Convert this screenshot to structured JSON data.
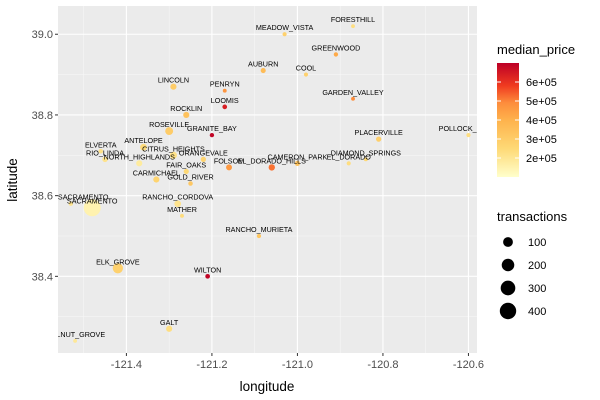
{
  "chart_data": {
    "type": "scatter",
    "xlabel": "longitude",
    "ylabel": "latitude",
    "xlim": [
      -121.56,
      -120.58
    ],
    "ylim": [
      38.21,
      39.07
    ],
    "x_ticks": [
      -121.4,
      -121.2,
      -121.0,
      -120.8,
      -120.6
    ],
    "x_tick_labels": [
      "-121.4",
      "-121.2",
      "-121.0",
      "-120.8",
      "-120.6"
    ],
    "y_ticks": [
      38.4,
      38.6,
      38.8,
      39.0
    ],
    "y_tick_labels": [
      "38.4",
      "38.6",
      "38.8",
      "39.0"
    ],
    "grid": true,
    "color_legend": {
      "title": "median_price",
      "min": 100000,
      "max": 700000,
      "breaks": [
        200000,
        300000,
        400000,
        500000,
        600000
      ],
      "break_labels": [
        "2e+05",
        "3e+05",
        "4e+05",
        "5e+05",
        "6e+05"
      ],
      "low_color": "#ffffcc",
      "high_color": "#bd0026"
    },
    "size_legend": {
      "title": "transactions",
      "breaks": [
        100,
        200,
        300,
        400
      ],
      "break_labels": [
        "100",
        "200",
        "300",
        "400"
      ]
    },
    "legend_position": "right",
    "points": [
      {
        "label": "FORESTHILL",
        "x": -120.87,
        "y": 39.02,
        "transactions": 1,
        "median_price": 230000
      },
      {
        "label": "MEADOW_VISTA",
        "x": -121.03,
        "y": 39.0,
        "transactions": 2,
        "median_price": 280000
      },
      {
        "label": "GREENWOOD",
        "x": -120.91,
        "y": 38.95,
        "transactions": 3,
        "median_price": 420000
      },
      {
        "label": "AUBURN",
        "x": -121.08,
        "y": 38.91,
        "transactions": 8,
        "median_price": 360000
      },
      {
        "label": "COOL",
        "x": -120.98,
        "y": 38.9,
        "transactions": 2,
        "median_price": 280000
      },
      {
        "label": "LINCOLN",
        "x": -121.29,
        "y": 38.87,
        "transactions": 20,
        "median_price": 300000
      },
      {
        "label": "PENRYN",
        "x": -121.17,
        "y": 38.86,
        "transactions": 1,
        "median_price": 470000
      },
      {
        "label": "GARDEN_VALLEY",
        "x": -120.87,
        "y": 38.84,
        "transactions": 1,
        "median_price": 490000
      },
      {
        "label": "LOOMIS",
        "x": -121.17,
        "y": 38.82,
        "transactions": 5,
        "median_price": 640000
      },
      {
        "label": "ROCKLIN",
        "x": -121.26,
        "y": 38.8,
        "transactions": 20,
        "median_price": 340000
      },
      {
        "label": "POLLOCK_PINES",
        "x": -120.6,
        "y": 38.75,
        "transactions": 2,
        "median_price": 230000
      },
      {
        "label": "ROSEVILLE",
        "x": -121.3,
        "y": 38.76,
        "transactions": 50,
        "median_price": 300000
      },
      {
        "label": "GRANITE_BAY",
        "x": -121.2,
        "y": 38.75,
        "transactions": 3,
        "median_price": 690000
      },
      {
        "label": "PLACERVILLE",
        "x": -120.81,
        "y": 38.74,
        "transactions": 10,
        "median_price": 290000
      },
      {
        "label": "ELVERTA",
        "x": -121.46,
        "y": 38.71,
        "transactions": 4,
        "median_price": 220000
      },
      {
        "label": "ANTELOPE",
        "x": -121.36,
        "y": 38.72,
        "transactions": 30,
        "median_price": 240000
      },
      {
        "label": "CITRUS_HEIGHTS",
        "x": -121.29,
        "y": 38.7,
        "transactions": 35,
        "median_price": 220000
      },
      {
        "label": "RIO_LINDA",
        "x": -121.45,
        "y": 38.69,
        "transactions": 12,
        "median_price": 210000
      },
      {
        "label": "ORANGEVALE",
        "x": -121.22,
        "y": 38.69,
        "transactions": 10,
        "median_price": 270000
      },
      {
        "label": "NORTH_HIGHLANDS",
        "x": -121.37,
        "y": 38.68,
        "transactions": 20,
        "median_price": 180000
      },
      {
        "label": "CAMERON_PARK",
        "x": -121.0,
        "y": 38.68,
        "transactions": 9,
        "median_price": 330000
      },
      {
        "label": "DIAMOND_SPRINGS",
        "x": -120.84,
        "y": 38.69,
        "transactions": 1,
        "median_price": 250000
      },
      {
        "label": "FOLSOM",
        "x": -121.16,
        "y": 38.67,
        "transactions": 17,
        "median_price": 460000
      },
      {
        "label": "EL_DORADO_HILLS",
        "x": -121.06,
        "y": 38.67,
        "transactions": 23,
        "median_price": 520000
      },
      {
        "label": "EL_DORADO",
        "x": -120.88,
        "y": 38.68,
        "transactions": 2,
        "median_price": 230000
      },
      {
        "label": "FAIR_OAKS",
        "x": -121.26,
        "y": 38.66,
        "transactions": 9,
        "median_price": 250000
      },
      {
        "label": "CARMICHAEL",
        "x": -121.33,
        "y": 38.64,
        "transactions": 20,
        "median_price": 270000
      },
      {
        "label": "GOLD_RIVER",
        "x": -121.25,
        "y": 38.63,
        "transactions": 4,
        "median_price": 320000
      },
      {
        "label": "WEST_SACRAMENTO",
        "x": -121.53,
        "y": 38.58,
        "transactions": 3,
        "median_price": 210000
      },
      {
        "label": "SACRAMENTO",
        "x": -121.48,
        "y": 38.57,
        "transactions": 439,
        "median_price": 150000
      },
      {
        "label": "RANCHO_CORDOVA",
        "x": -121.28,
        "y": 38.58,
        "transactions": 28,
        "median_price": 210000
      },
      {
        "label": "MATHER",
        "x": -121.27,
        "y": 38.55,
        "transactions": 1,
        "median_price": 240000
      },
      {
        "label": "RANCHO_MURIETA",
        "x": -121.09,
        "y": 38.5,
        "transactions": 3,
        "median_price": 320000
      },
      {
        "label": "ELK_GROVE",
        "x": -121.42,
        "y": 38.42,
        "transactions": 114,
        "median_price": 280000
      },
      {
        "label": "WILTON",
        "x": -121.21,
        "y": 38.4,
        "transactions": 5,
        "median_price": 690000
      },
      {
        "label": "GALT",
        "x": -121.3,
        "y": 38.27,
        "transactions": 21,
        "median_price": 230000
      },
      {
        "label": "WALNUT_GROVE",
        "x": -121.52,
        "y": 38.24,
        "transactions": 1,
        "median_price": 190000
      }
    ]
  }
}
